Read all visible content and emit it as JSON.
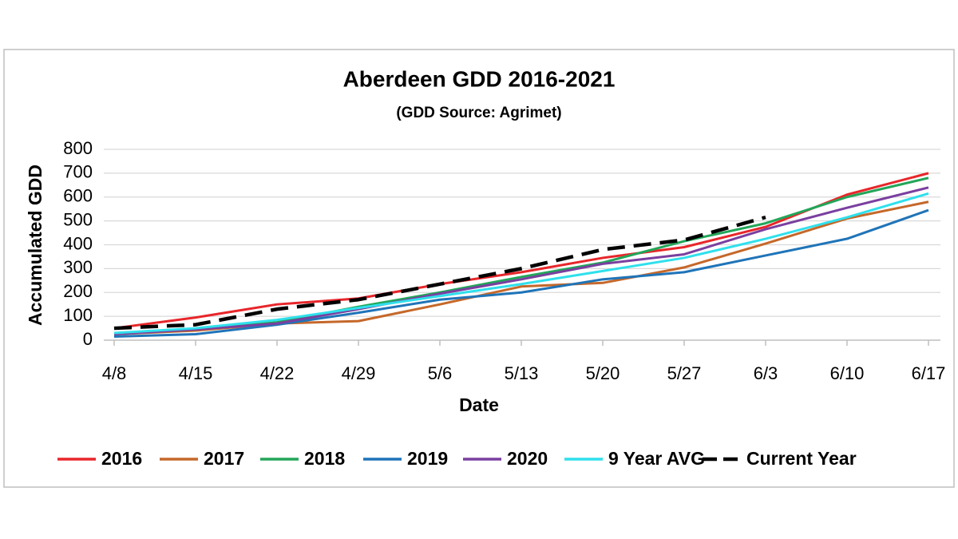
{
  "chart_data": {
    "type": "line",
    "title": "Aberdeen GDD 2016-2021",
    "subtitle": "(GDD Source: Agrimet)",
    "x_label": "Date",
    "y_label": "Accumulated GDD",
    "categories": [
      "4/8",
      "4/15",
      "4/22",
      "4/29",
      "5/6",
      "5/13",
      "5/20",
      "5/27",
      "6/3",
      "6/10",
      "6/17"
    ],
    "series": [
      {
        "name": "2016",
        "color": "#e8262a",
        "values": [
          50,
          95,
          150,
          175,
          235,
          285,
          345,
          390,
          475,
          610,
          700
        ]
      },
      {
        "name": "2017",
        "color": "#c5682a",
        "values": [
          25,
          40,
          70,
          80,
          150,
          225,
          240,
          305,
          405,
          510,
          580
        ]
      },
      {
        "name": "2018",
        "color": "#22a659",
        "values": [
          25,
          45,
          75,
          140,
          200,
          265,
          325,
          415,
          490,
          600,
          680
        ]
      },
      {
        "name": "2019",
        "color": "#1f74b8",
        "values": [
          15,
          25,
          65,
          115,
          170,
          200,
          255,
          285,
          355,
          425,
          545
        ]
      },
      {
        "name": "2020",
        "color": "#7a3fa0",
        "values": [
          25,
          45,
          70,
          130,
          195,
          255,
          320,
          360,
          465,
          555,
          640
        ]
      },
      {
        "name": "9 Year AVG",
        "color": "#2fe0ec",
        "values": [
          30,
          50,
          85,
          135,
          185,
          235,
          290,
          345,
          425,
          515,
          615
        ]
      },
      {
        "name": "Current Year",
        "color": "#000000",
        "dashed": true,
        "values": [
          50,
          65,
          130,
          170,
          235,
          300,
          380,
          420,
          515,
          null,
          null
        ]
      }
    ],
    "ylim": [
      0,
      800
    ],
    "yticks": [
      0,
      100,
      200,
      300,
      400,
      500,
      600,
      700,
      800
    ],
    "grid": true,
    "legend": "bottom"
  }
}
